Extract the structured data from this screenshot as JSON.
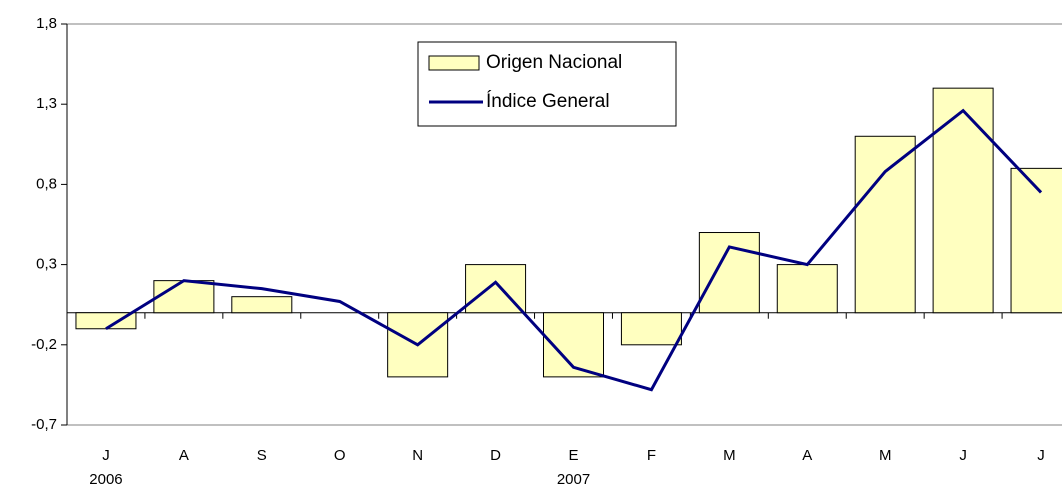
{
  "chart_data": {
    "type": "bar_line",
    "categories": [
      "J",
      "A",
      "S",
      "O",
      "N",
      "D",
      "E",
      "F",
      "M",
      "A",
      "M",
      "J",
      "J"
    ],
    "categories2": [
      "2006",
      null,
      null,
      null,
      null,
      null,
      "2007",
      null,
      null,
      null,
      null,
      null,
      null
    ],
    "series": [
      {
        "name": "Origen Nacional",
        "type": "bar",
        "color": "#ffffc0",
        "values": [
          -0.1,
          0.2,
          0.1,
          0,
          -0.4,
          0.3,
          -0.4,
          -0.2,
          0.5,
          0.3,
          1.1,
          1.4,
          0.9
        ]
      },
      {
        "name": "Índice General",
        "type": "line",
        "color": "#000080",
        "values": [
          -0.1,
          0.2,
          0.15,
          0.07,
          -0.2,
          0.19,
          -0.34,
          -0.48,
          0.41,
          0.3,
          0.88,
          1.26,
          0.75
        ]
      }
    ],
    "ylim": [
      -0.7,
      1.8
    ],
    "yticks": [
      {
        "value": -0.7,
        "label": "-0,7"
      },
      {
        "value": -0.2,
        "label": "-0,2"
      },
      {
        "value": 0.3,
        "label": "0,3"
      },
      {
        "value": 0.8,
        "label": "0,8"
      },
      {
        "value": 1.3,
        "label": "1,3"
      },
      {
        "value": 1.8,
        "label": "1,8"
      }
    ],
    "legend": "top-center"
  }
}
